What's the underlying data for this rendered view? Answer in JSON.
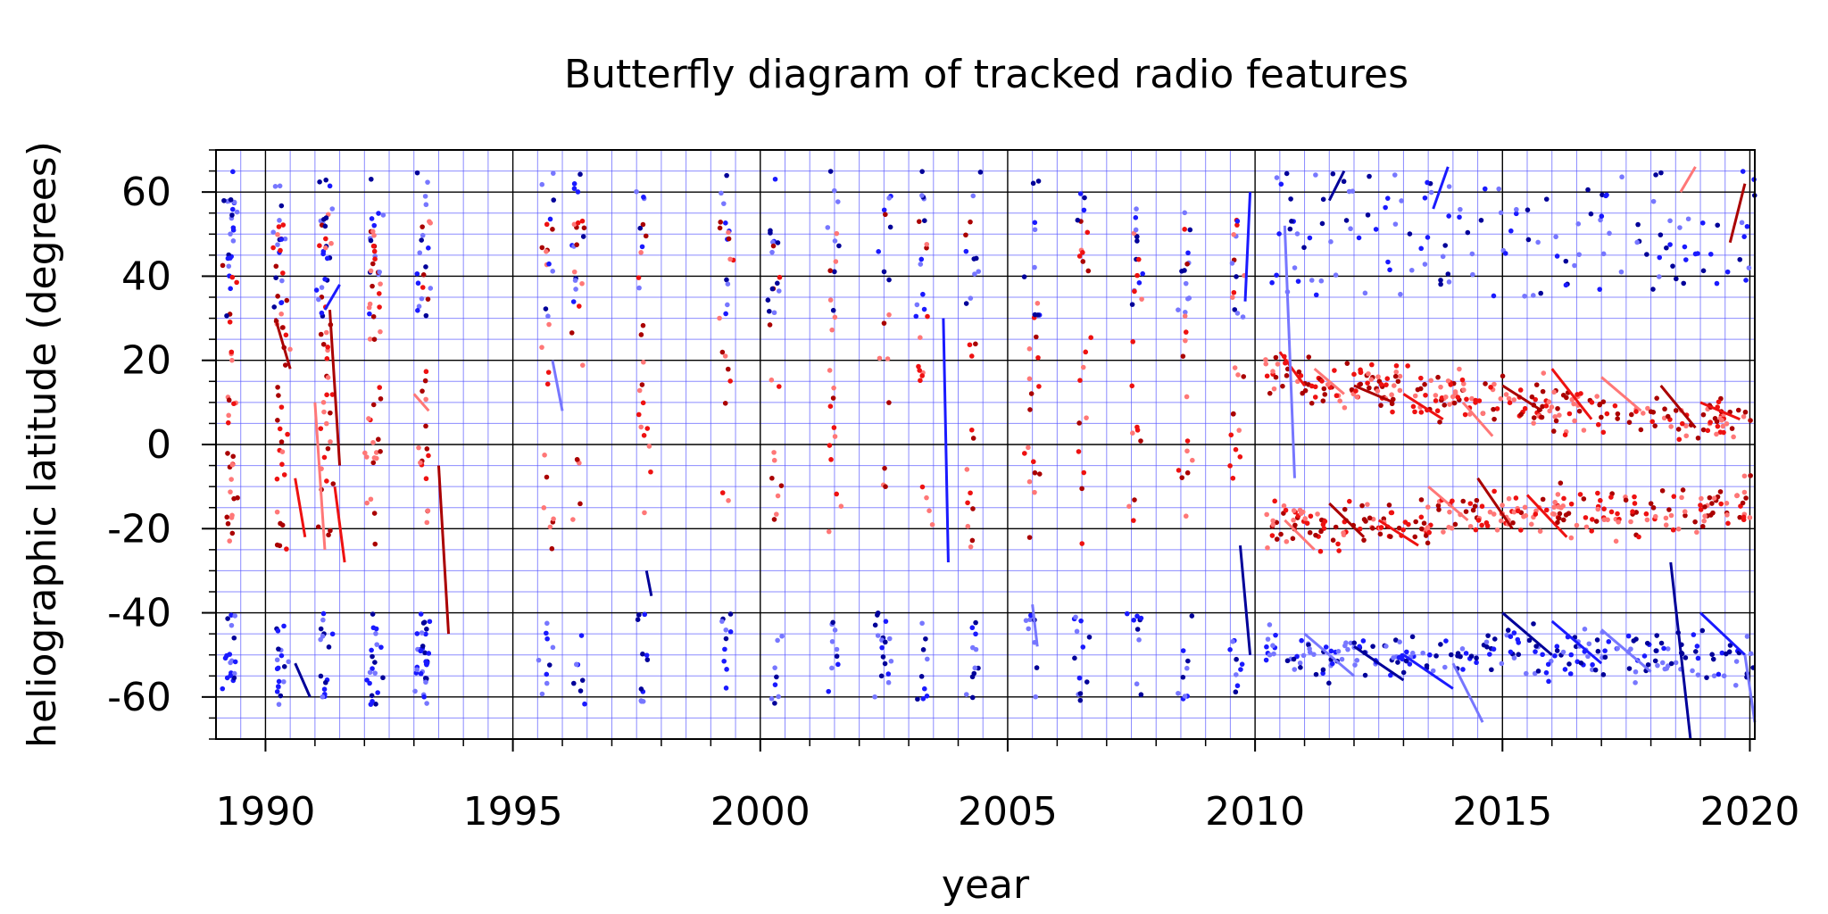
{
  "chart_data": {
    "type": "scatter",
    "title": "Butterfly diagram of tracked radio features",
    "xlabel": "year",
    "ylabel": "heliographic latitude (degrees)",
    "xlim": [
      1989.0,
      2020.1
    ],
    "ylim": [
      -70,
      70
    ],
    "x_ticks": [
      1990,
      1995,
      2000,
      2005,
      2010,
      2015,
      2020
    ],
    "y_ticks": [
      -60,
      -40,
      -20,
      0,
      20,
      40,
      60
    ],
    "grid": true,
    "legend": "none",
    "colors": {
      "north_dark": "#000099",
      "north_mid": "#1a1aff",
      "north_light": "#7777ff",
      "south_dark": "#aa0000",
      "south_mid": "#ee1111",
      "south_light": "#ff7777",
      "minor_grid": "#5a5aff",
      "major_grid": "#000000"
    },
    "observing_seasons": [
      1989.3,
      1990.3,
      1991.2,
      1992.2,
      1993.2,
      1995.7,
      1996.3,
      1997.6,
      1999.3,
      2000.3,
      2001.5,
      2002.5,
      2003.3,
      2004.3,
      2005.5,
      2006.5,
      2007.6,
      2008.6,
      2009.6
    ],
    "tracks_south": [
      {
        "x": [
          1990.2,
          1990.5
        ],
        "y": [
          30,
          18
        ]
      },
      {
        "x": [
          1990.6,
          1990.8
        ],
        "y": [
          -8,
          -22
        ]
      },
      {
        "x": [
          1991.0,
          1991.2
        ],
        "y": [
          10,
          -25
        ]
      },
      {
        "x": [
          1991.3,
          1991.5
        ],
        "y": [
          32,
          -5
        ]
      },
      {
        "x": [
          1991.4,
          1991.6
        ],
        "y": [
          -10,
          -28
        ]
      },
      {
        "x": [
          1993.0,
          1993.3
        ],
        "y": [
          12,
          8
        ]
      },
      {
        "x": [
          1993.5,
          1993.7
        ],
        "y": [
          -5,
          -45
        ]
      },
      {
        "x": [
          2010.5,
          2011.0
        ],
        "y": [
          22,
          14
        ]
      },
      {
        "x": [
          2011.2,
          2011.8
        ],
        "y": [
          18,
          12
        ]
      },
      {
        "x": [
          2012.0,
          2012.8
        ],
        "y": [
          14,
          10
        ]
      },
      {
        "x": [
          2013.0,
          2013.8
        ],
        "y": [
          12,
          6
        ]
      },
      {
        "x": [
          2014.2,
          2014.8
        ],
        "y": [
          10,
          2
        ]
      },
      {
        "x": [
          2015.0,
          2015.8
        ],
        "y": [
          14,
          8
        ]
      },
      {
        "x": [
          2016.0,
          2016.8
        ],
        "y": [
          18,
          6
        ]
      },
      {
        "x": [
          2017.0,
          2017.8
        ],
        "y": [
          16,
          8
        ]
      },
      {
        "x": [
          2018.2,
          2018.9
        ],
        "y": [
          14,
          4
        ]
      },
      {
        "x": [
          2019.0,
          2019.8
        ],
        "y": [
          10,
          6
        ]
      },
      {
        "x": [
          2010.6,
          2011.2
        ],
        "y": [
          -18,
          -25
        ]
      },
      {
        "x": [
          2011.5,
          2012.2
        ],
        "y": [
          -14,
          -22
        ]
      },
      {
        "x": [
          2012.5,
          2013.3
        ],
        "y": [
          -18,
          -24
        ]
      },
      {
        "x": [
          2013.5,
          2014.3
        ],
        "y": [
          -10,
          -18
        ]
      },
      {
        "x": [
          2014.5,
          2015.2
        ],
        "y": [
          -8,
          -20
        ]
      },
      {
        "x": [
          2015.5,
          2016.3
        ],
        "y": [
          -12,
          -22
        ]
      },
      {
        "x": [
          2018.6,
          2018.9
        ],
        "y": [
          60,
          66
        ]
      },
      {
        "x": [
          2019.6,
          2019.9
        ],
        "y": [
          48,
          62
        ]
      }
    ],
    "tracks_north": [
      {
        "x": [
          1990.6,
          1990.9
        ],
        "y": [
          -52,
          -60
        ]
      },
      {
        "x": [
          1991.2,
          1991.5
        ],
        "y": [
          32,
          38
        ]
      },
      {
        "x": [
          1995.8,
          1996.0
        ],
        "y": [
          20,
          8
        ]
      },
      {
        "x": [
          1997.7,
          1997.8
        ],
        "y": [
          -30,
          -36
        ]
      },
      {
        "x": [
          2003.7,
          2003.8
        ],
        "y": [
          30,
          -28
        ]
      },
      {
        "x": [
          2005.5,
          2005.6
        ],
        "y": [
          -38,
          -48
        ]
      },
      {
        "x": [
          2009.7,
          2009.9
        ],
        "y": [
          -24,
          -50
        ]
      },
      {
        "x": [
          2009.8,
          2009.9
        ],
        "y": [
          34,
          60
        ]
      },
      {
        "x": [
          2010.6,
          2010.8
        ],
        "y": [
          52,
          -8
        ]
      },
      {
        "x": [
          2011.5,
          2011.8
        ],
        "y": [
          58,
          65
        ]
      },
      {
        "x": [
          2013.6,
          2013.9
        ],
        "y": [
          56,
          66
        ]
      },
      {
        "x": [
          2011.0,
          2012.0
        ],
        "y": [
          -45,
          -55
        ]
      },
      {
        "x": [
          2012.0,
          2013.0
        ],
        "y": [
          -48,
          -56
        ]
      },
      {
        "x": [
          2013.0,
          2014.0
        ],
        "y": [
          -50,
          -58
        ]
      },
      {
        "x": [
          2014.0,
          2014.6
        ],
        "y": [
          -52,
          -66
        ]
      },
      {
        "x": [
          2015.0,
          2016.0
        ],
        "y": [
          -40,
          -50
        ]
      },
      {
        "x": [
          2016.0,
          2017.0
        ],
        "y": [
          -42,
          -52
        ]
      },
      {
        "x": [
          2017.0,
          2018.0
        ],
        "y": [
          -44,
          -54
        ]
      },
      {
        "x": [
          2018.4,
          2018.8
        ],
        "y": [
          -28,
          -70
        ]
      },
      {
        "x": [
          2019.0,
          2019.9
        ],
        "y": [
          -40,
          -50
        ]
      },
      {
        "x": [
          2019.9,
          2020.1
        ],
        "y": [
          -50,
          -66
        ]
      }
    ]
  }
}
